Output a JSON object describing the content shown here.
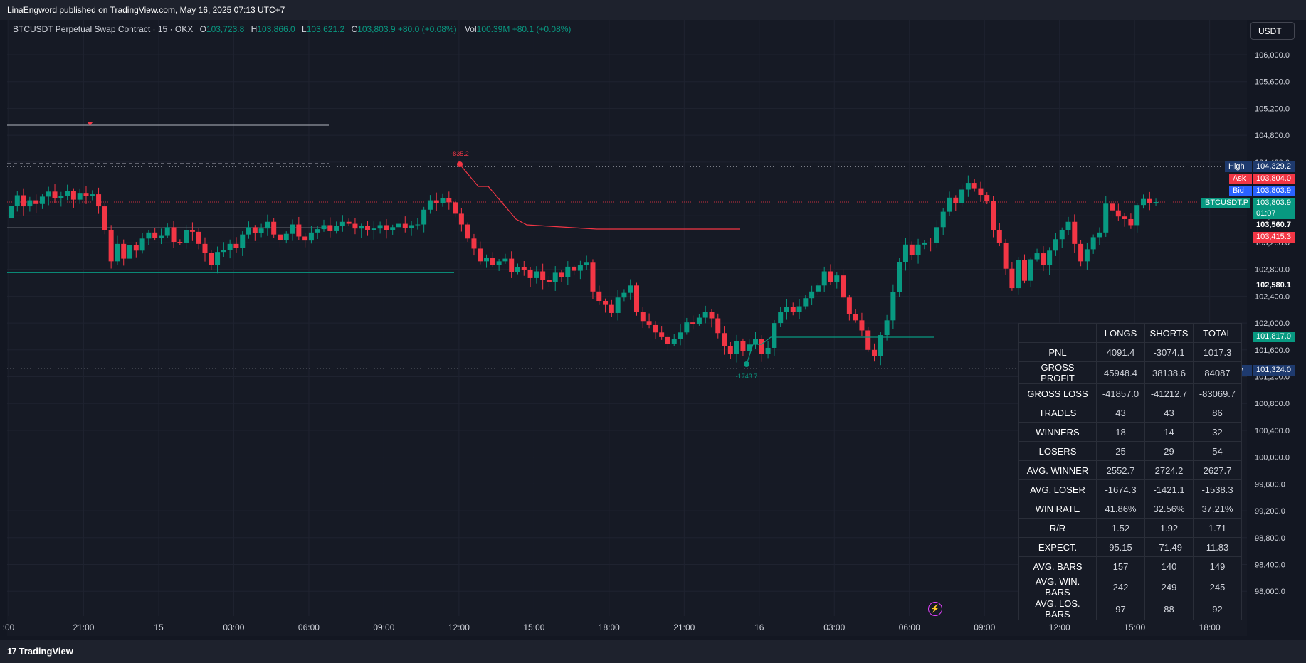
{
  "header": {
    "publish_line": "LinaEngword published on TradingView.com, May 16, 2025 07:13 UTC+7"
  },
  "legend": {
    "symbol": "BTCUSDT Perpetual Swap Contract · 15 · OKX",
    "open_label": "O",
    "open": "103,723.8",
    "high_label": "H",
    "high": "103,866.0",
    "low_label": "L",
    "low": "103,621.2",
    "close_label": "C",
    "close": "103,803.9",
    "change": "+80.0 (+0.08%)",
    "vol_label": "Vol",
    "vol": "100.39M",
    "vol_change": "+80.1 (+0.08%)"
  },
  "currency": "USDT",
  "price_tags": {
    "high_label": "High",
    "high": "104,329.2",
    "ask_label": "Ask",
    "ask": "103,804.0",
    "bid_label": "Bid",
    "bid": "103,803.9",
    "symbol_label": "BTCUSDT.P",
    "last": "103,803.9",
    "countdown": "01:07",
    "level_1": "103,560.7",
    "level_2": "103,415.3",
    "level_3": "102,580.1",
    "level_4": "101,817.0",
    "low_label": "Low",
    "low": "101,324.0"
  },
  "annotations": {
    "drawdown_top": "-835.2",
    "drawdown_bottom": "-1743.7"
  },
  "stats": {
    "headers": [
      "",
      "LONGS",
      "SHORTS",
      "TOTAL"
    ],
    "rows": [
      [
        "PNL",
        "4091.4",
        "-3074.1",
        "1017.3"
      ],
      [
        "GROSS PROFIT",
        "45948.4",
        "38138.6",
        "84087"
      ],
      [
        "GROSS LOSS",
        "-41857.0",
        "-41212.7",
        "-83069.7"
      ],
      [
        "TRADES",
        "43",
        "43",
        "86"
      ],
      [
        "WINNERS",
        "18",
        "14",
        "32"
      ],
      [
        "LOSERS",
        "25",
        "29",
        "54"
      ],
      [
        "AVG. WINNER",
        "2552.7",
        "2724.2",
        "2627.7"
      ],
      [
        "AVG. LOSER",
        "-1674.3",
        "-1421.1",
        "-1538.3"
      ],
      [
        "WIN RATE",
        "41.86%",
        "32.56%",
        "37.21%"
      ],
      [
        "R/R",
        "1.52",
        "1.92",
        "1.71"
      ],
      [
        "EXPECT.",
        "95.15",
        "-71.49",
        "11.83"
      ],
      [
        "AVG. BARS",
        "157",
        "140",
        "149"
      ],
      [
        "AVG. WIN. BARS",
        "242",
        "249",
        "245"
      ],
      [
        "AVG. LOS. BARS",
        "97",
        "88",
        "92"
      ]
    ]
  },
  "footer": {
    "brand": "TradingView",
    "logo_text": "17"
  },
  "colors": {
    "up": "#089981",
    "down": "#f23645",
    "background": "#161a25",
    "grid": "#1f2330"
  },
  "chart_data": {
    "type": "candlestick",
    "title": "",
    "y_ticks": [
      106000,
      105600,
      105200,
      104800,
      104400,
      104000,
      103600,
      103200,
      102800,
      102400,
      102000,
      101600,
      101200,
      100800,
      100400,
      100000,
      99600,
      99200,
      98800,
      98400,
      98000
    ],
    "y_tick_labels": [
      "106,000.0",
      "105,600.0",
      "105,200.0",
      "104,800.0",
      "104,400.0",
      "104,000.0",
      "103,600.0",
      "103,200.0",
      "102,800.0",
      "102,400.0",
      "102,000.0",
      "101,600.0",
      "101,200.0",
      "100,800.0",
      "100,400.0",
      "100,000.0",
      "99,600.0",
      "99,200.0",
      "98,800.0",
      "98,400.0",
      "98,000.0"
    ],
    "x_tick_labels": [
      ":00",
      "21:00",
      "15",
      "03:00",
      "06:00",
      "09:00",
      "12:00",
      "15:00",
      "18:00",
      "21:00",
      "16",
      "03:00",
      "06:00",
      "09:00",
      "12:00",
      "15:00",
      "18:00"
    ],
    "ylim": [
      97700,
      106300
    ],
    "grid": true,
    "bars_per_tick": 12,
    "closes": [
      103745,
      103905,
      103740,
      103830,
      103775,
      103885,
      103960,
      103860,
      103900,
      103970,
      103840,
      103930,
      103890,
      103920,
      103740,
      103380,
      102920,
      103180,
      102960,
      103160,
      103080,
      103260,
      103350,
      103270,
      103300,
      103430,
      103210,
      103190,
      103390,
      103360,
      103180,
      103050,
      102870,
      103060,
      103090,
      103180,
      103120,
      103320,
      103430,
      103340,
      103410,
      103510,
      103320,
      103240,
      103330,
      103470,
      103290,
      103230,
      103350,
      103400,
      103460,
      103370,
      103450,
      103510,
      103480,
      103410,
      103450,
      103380,
      103410,
      103460,
      103390,
      103430,
      103480,
      103420,
      103460,
      103470,
      103690,
      103830,
      103790,
      103860,
      103800,
      103630,
      103470,
      103260,
      103110,
      102920,
      102970,
      102870,
      102920,
      102960,
      102760,
      102830,
      102790,
      102670,
      102770,
      102640,
      102610,
      102750,
      102690,
      102840,
      102780,
      102860,
      102900,
      102470,
      102330,
      102270,
      102150,
      102380,
      102450,
      102560,
      102160,
      102030,
      101970,
      101860,
      101790,
      101690,
      101760,
      101860,
      102010,
      101990,
      102080,
      102170,
      102070,
      101850,
      101660,
      101540,
      101730,
      101580,
      101680,
      101760,
      101540,
      101630,
      102000,
      102160,
      102240,
      102170,
      102250,
      102370,
      102470,
      102560,
      102770,
      102610,
      102710,
      102380,
      102130,
      102040,
      101890,
      101600,
      101510,
      101820,
      102040,
      102460,
      102910,
      103170,
      103010,
      103170,
      103200,
      103190,
      103430,
      103660,
      103870,
      103790,
      103990,
      104090,
      104010,
      103910,
      103820,
      103380,
      103190,
      102810,
      102520,
      102940,
      102630,
      102950,
      103040,
      102860,
      103080,
      103250,
      103390,
      103510,
      103180,
      102920,
      103100,
      103280,
      103350,
      103780,
      103680,
      103590,
      103550,
      103460,
      103760,
      103850,
      103790,
      103804
    ]
  }
}
